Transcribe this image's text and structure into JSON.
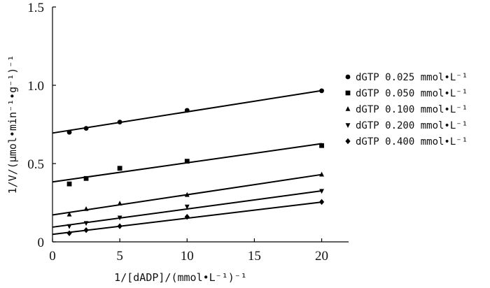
{
  "chart_data": {
    "type": "scatter",
    "title": "",
    "xlabel": "1/[dADP]/(mmol•L⁻¹)⁻¹",
    "ylabel": "1/V/(μmol•min⁻¹•g⁻¹)⁻¹",
    "xlim": [
      0,
      22
    ],
    "ylim": [
      0,
      1.5
    ],
    "xticks": [
      "0",
      "5",
      "10",
      "15",
      "20"
    ],
    "yticks": [
      "0",
      "0.5",
      "1.0",
      "1.5"
    ],
    "grid": false,
    "legend_position": "right",
    "fit_lines": true,
    "series": [
      {
        "name": "dGTP 0.025 mmol•L⁻¹",
        "marker": "circle",
        "x": [
          1.25,
          2.5,
          5,
          10,
          20
        ],
        "y": [
          0.7,
          0.725,
          0.765,
          0.84,
          0.965
        ],
        "fit": {
          "intercept": 0.695,
          "slope": 0.01355
        }
      },
      {
        "name": "dGTP 0.050 mmol•L⁻¹",
        "marker": "square",
        "x": [
          1.25,
          2.5,
          5,
          10,
          20
        ],
        "y": [
          0.37,
          0.405,
          0.47,
          0.515,
          0.615
        ],
        "fit": {
          "intercept": 0.383,
          "slope": 0.0122
        }
      },
      {
        "name": "dGTP 0.100 mmol•L⁻¹",
        "marker": "triangle-up",
        "x": [
          1.25,
          2.5,
          5,
          10,
          20
        ],
        "y": [
          0.175,
          0.21,
          0.245,
          0.3,
          0.43
        ],
        "fit": {
          "intercept": 0.172,
          "slope": 0.0129
        }
      },
      {
        "name": "dGTP 0.200 mmol•L⁻¹",
        "marker": "triangle-down",
        "x": [
          1.25,
          2.5,
          5,
          10,
          20
        ],
        "y": [
          0.1,
          0.12,
          0.155,
          0.225,
          0.325
        ],
        "fit": {
          "intercept": 0.094,
          "slope": 0.0116
        }
      },
      {
        "name": "dGTP 0.400 mmol•L⁻¹",
        "marker": "diamond",
        "x": [
          1.25,
          2.5,
          5,
          10,
          20
        ],
        "y": [
          0.055,
          0.075,
          0.1,
          0.16,
          0.255
        ],
        "fit": {
          "intercept": 0.048,
          "slope": 0.0103
        }
      }
    ]
  }
}
